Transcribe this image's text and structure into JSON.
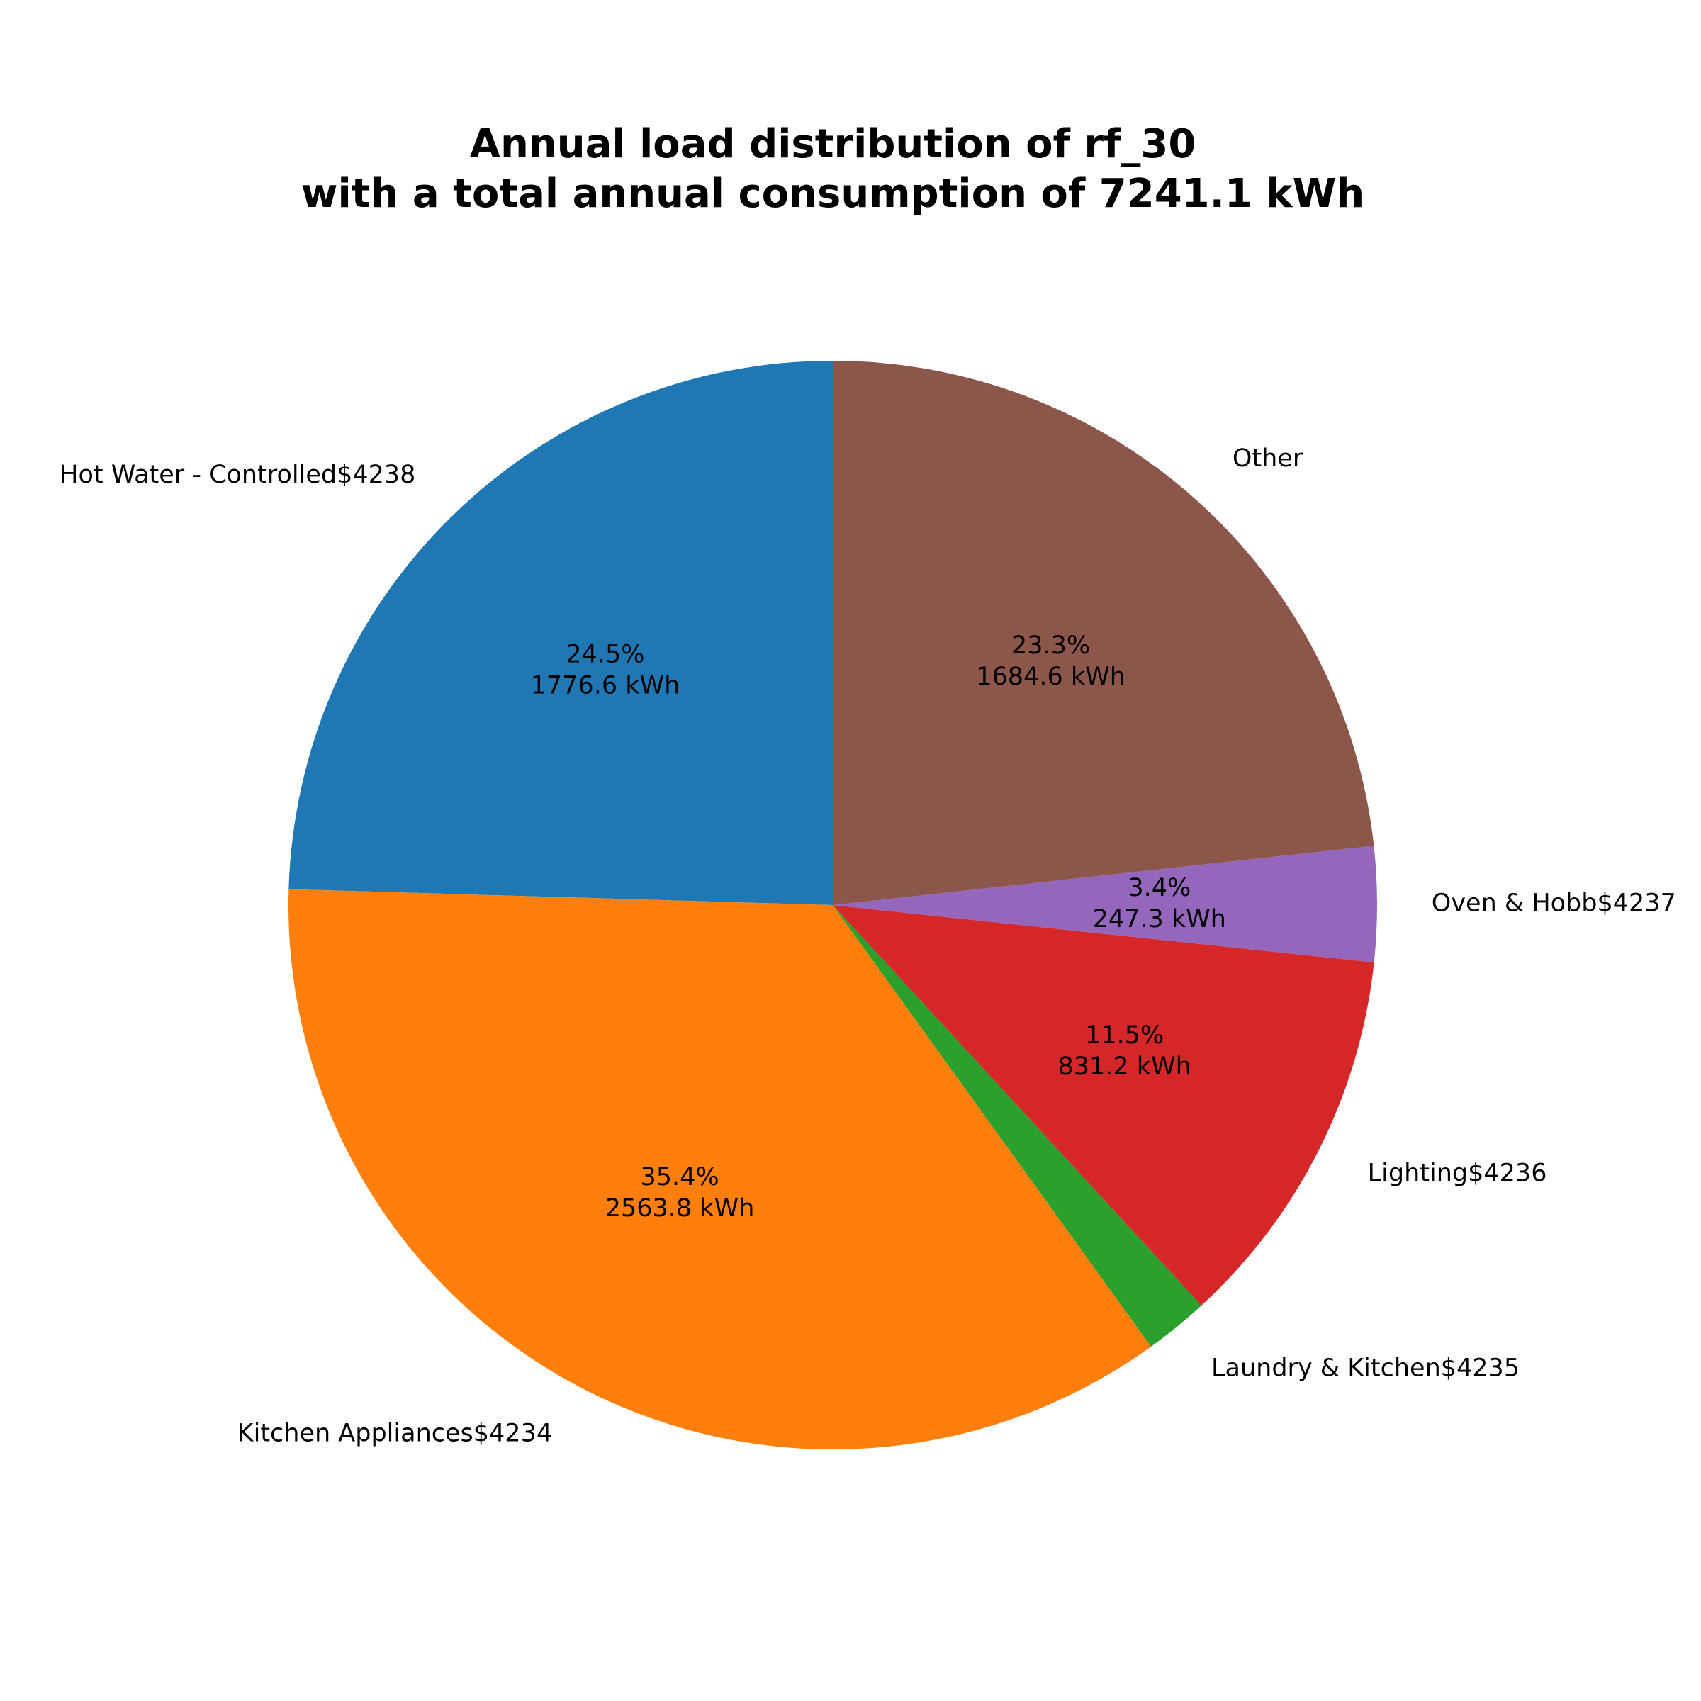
{
  "chart_data": {
    "type": "pie",
    "title_line1": "Annual load distribution of rf_30",
    "title_line2": "with a total annual consumption of 7241.1 kWh",
    "unit": "kWh",
    "start_angle_deg": 90,
    "direction": "counterclockwise",
    "slices": [
      {
        "label": "Hot Water - Controlled$4238",
        "value": 1776.6,
        "percent_label": "24.5%",
        "value_label": "1776.6 kWh",
        "color": "#1f77b4"
      },
      {
        "label": "Kitchen Appliances$4234",
        "value": 2563.8,
        "percent_label": "35.4%",
        "value_label": "2563.8 kWh",
        "color": "#ff7f0e"
      },
      {
        "label": "Laundry & Kitchen$4235",
        "value": 137.6,
        "percent_label": "",
        "value_label": "",
        "color": "#2ca02c"
      },
      {
        "label": "Lighting$4236",
        "value": 831.2,
        "percent_label": "11.5%",
        "value_label": "831.2 kWh",
        "color": "#d62728"
      },
      {
        "label": "Oven & Hobb$4237",
        "value": 247.3,
        "percent_label": "3.4%",
        "value_label": "247.3 kWh",
        "color": "#9467bd"
      },
      {
        "label": "Other",
        "value": 1684.6,
        "percent_label": "23.3%",
        "value_label": "1684.6 kWh",
        "color": "#8c564b"
      }
    ]
  }
}
